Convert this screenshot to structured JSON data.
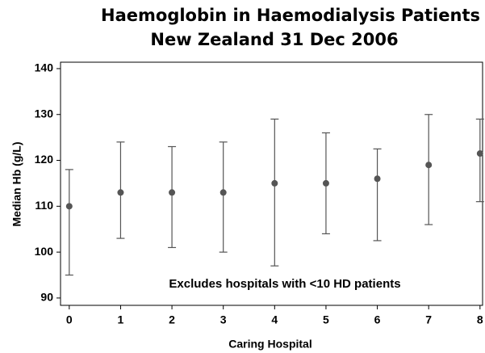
{
  "chart_data": {
    "type": "errorbar",
    "title": "Haemoglobin in Haemodialysis Patients",
    "subtitle": "New Zealand  31 Dec 2006",
    "x_label": "Caring Hospital",
    "y_label": "Median Hb (g/L)",
    "annotation": "Excludes hospitals with <10 HD patients",
    "x": [
      0,
      1,
      2,
      3,
      4,
      5,
      6,
      7,
      8
    ],
    "values": [
      110,
      113,
      113,
      113,
      115,
      115,
      116,
      119,
      121.5
    ],
    "lower": [
      95,
      103,
      101,
      100,
      97,
      104,
      102.5,
      106,
      111
    ],
    "upper": [
      118,
      124,
      123,
      124,
      129,
      126,
      122.5,
      130,
      129
    ],
    "color": "#555555",
    "xlim": [
      -0.17,
      8.05
    ],
    "xticks": [
      0,
      1,
      2,
      3,
      4,
      5,
      6,
      7,
      8
    ],
    "ylim": [
      88.4,
      141.4
    ],
    "yticks": [
      90,
      100,
      110,
      120,
      130,
      140
    ]
  }
}
